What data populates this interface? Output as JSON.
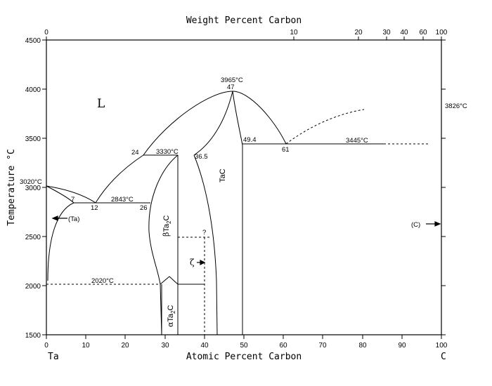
{
  "axes": {
    "top_title": "Weight Percent Carbon",
    "bottom_title": "Atomic Percent Carbon",
    "left_title": "Temperature °C",
    "left_end_label": "Ta",
    "right_end_label": "C",
    "y_ticks": [
      "4500",
      "4000",
      "3500",
      "3000",
      "2500",
      "2000",
      "1500"
    ],
    "x_ticks": [
      "0",
      "10",
      "20",
      "30",
      "40",
      "50",
      "60",
      "70",
      "80",
      "90",
      "100"
    ],
    "top_ticks": [
      "0",
      "10",
      "20",
      "30",
      "40",
      "60",
      "100"
    ]
  },
  "annotations": {
    "liquid": "L",
    "tantalum_solid": "(Ta)",
    "carbon_solid": "(C)",
    "t_3965": "3965°C",
    "c_47": "47",
    "t_3826": "3826°C",
    "c_24": "24",
    "t_3330": "3330°C",
    "c_36_5": "36.5",
    "c_49_4": "49.4",
    "c_61": "61",
    "t_3445": "3445°C",
    "t_3020": "3020°C",
    "c_7": "7",
    "c_12": "12",
    "t_2843": "2843°C",
    "c_26": "26",
    "t_2020": "2020°C",
    "zeta": "ζ",
    "question": "?",
    "tac": "TaC"
  },
  "phase_labels": {
    "beta_prefix": "β",
    "alpha_prefix": "α",
    "ta": "Ta",
    "sub2": "2",
    "c": "C"
  }
}
